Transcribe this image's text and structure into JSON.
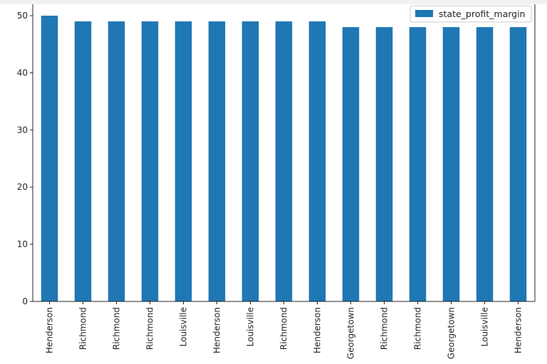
{
  "chart_data": {
    "type": "bar",
    "title": "",
    "xlabel": "",
    "ylabel": "",
    "categories": [
      "Henderson",
      "Richmond",
      "Richmond",
      "Richmond",
      "Louisville",
      "Henderson",
      "Louisville",
      "Richmond",
      "Henderson",
      "Georgetown",
      "Richmond",
      "Richmond",
      "Georgetown",
      "Louisville",
      "Henderson"
    ],
    "series": [
      {
        "name": "state_profit_margin",
        "color": "#1f77b4",
        "values": [
          50,
          49,
          49,
          49,
          49,
          49,
          49,
          49,
          49,
          48,
          48,
          48,
          48,
          48,
          48
        ]
      }
    ],
    "ylim": [
      0,
      52
    ],
    "yticks": [
      0,
      10,
      20,
      30,
      40,
      50
    ],
    "grid": false,
    "legend": "top-right"
  }
}
